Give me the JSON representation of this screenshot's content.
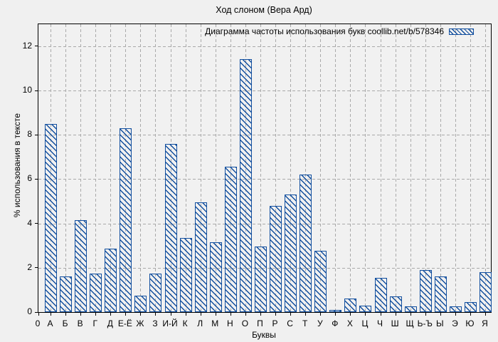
{
  "title": "Ход слоном (Вера Ард)",
  "legend": {
    "label": "Диаграмма частоты использования букв coollib.net/b/578346"
  },
  "axes": {
    "x_label": "Буквы",
    "y_label": "% использования в тексте",
    "x_origin_label": "0",
    "y_ticks": [
      0,
      2,
      4,
      6,
      8,
      10,
      12
    ]
  },
  "colors": {
    "bar": "#114e9e",
    "grid": "#a9a9a9",
    "axis": "#000000",
    "background": "#f0f0f0"
  },
  "chart_data": {
    "type": "bar",
    "title": "Ход слоном (Вера Ард)",
    "xlabel": "Буквы",
    "ylabel": "% использования в тексте",
    "legend_label": "Диаграмма частоты использования букв coollib.net/b/578346",
    "legend_position": "top-right",
    "grid": true,
    "bar_style": "blue-diagonal-hatch",
    "ylim": [
      0,
      13
    ],
    "y_tick_step": 2,
    "categories": [
      "А",
      "Б",
      "В",
      "Г",
      "Д",
      "Е-Ё",
      "Ж",
      "З",
      "И-Й",
      "К",
      "Л",
      "М",
      "Н",
      "О",
      "П",
      "Р",
      "С",
      "Т",
      "У",
      "Ф",
      "Х",
      "Ц",
      "Ч",
      "Ш",
      "Щ",
      "Ь-Ъ",
      "Ы",
      "Э",
      "Ю",
      "Я"
    ],
    "values": [
      8.5,
      1.6,
      4.15,
      1.75,
      2.85,
      8.3,
      0.75,
      1.75,
      7.6,
      3.35,
      4.95,
      3.15,
      6.55,
      11.4,
      2.95,
      4.8,
      5.3,
      6.2,
      2.75,
      0.1,
      0.6,
      0.3,
      1.55,
      0.7,
      0.25,
      1.9,
      1.6,
      0.25,
      0.45,
      1.8
    ]
  }
}
